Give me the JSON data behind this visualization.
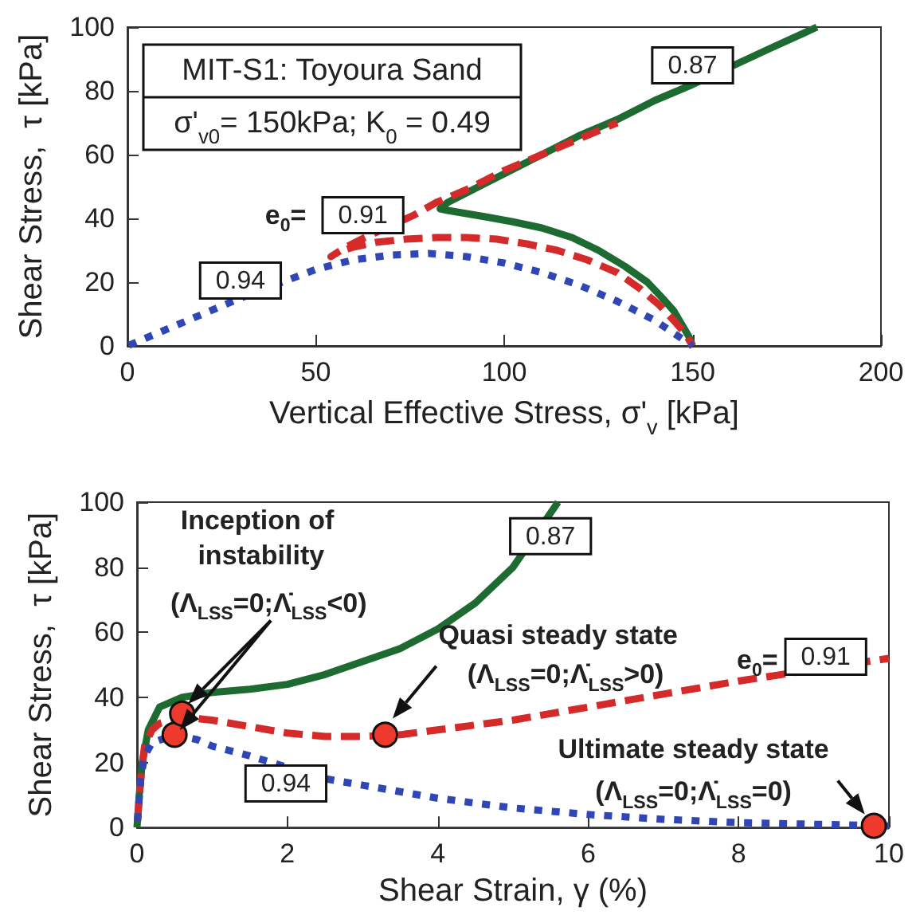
{
  "chart_data": [
    {
      "type": "line",
      "xlabel": "Vertical Effective Stress, σ'$_{v}$ [kPa]",
      "ylabel": "Shear Stress,  τ [kPa]",
      "xlim": [
        0,
        200
      ],
      "xticks": [
        0,
        50,
        100,
        150,
        200
      ],
      "ylim": [
        0,
        100
      ],
      "yticks": [
        0,
        20,
        40,
        60,
        80,
        100
      ],
      "grid": false,
      "series": [
        {
          "color": "#1e6b32",
          "line_style": "solid",
          "x": [
            150,
            149,
            147,
            145,
            142,
            138,
            132,
            125,
            118,
            110,
            102,
            95,
            90,
            85,
            83,
            85,
            90,
            95,
            100,
            110,
            120,
            130,
            140,
            150,
            170,
            183
          ],
          "values": [
            0,
            3,
            7,
            11,
            15,
            20,
            25,
            30,
            34,
            37,
            39,
            40.5,
            41.5,
            42.5,
            43,
            45,
            48,
            51,
            54,
            60,
            66,
            71,
            77,
            82,
            93,
            100
          ]
        },
        {
          "color": "#d42a2a",
          "line_style": "dashed",
          "x": [
            150,
            148,
            145,
            141,
            136,
            130,
            122,
            114,
            106,
            98,
            90,
            82,
            74,
            66,
            60,
            56,
            54,
            58,
            63,
            76,
            82,
            90,
            100,
            110,
            120,
            130
          ],
          "values": [
            0,
            4,
            8,
            13,
            18,
            23,
            27,
            30,
            32,
            33.5,
            34,
            34,
            33.5,
            32.5,
            31,
            29.5,
            28,
            31,
            34,
            41,
            45,
            49,
            55,
            60,
            65,
            70
          ]
        },
        {
          "color": "#2f46b4",
          "line_style": "dotted",
          "x": [
            0,
            5,
            10,
            20,
            30,
            50,
            60,
            70,
            80,
            90,
            100,
            110,
            120,
            130,
            140,
            145,
            150
          ],
          "values": [
            0,
            2.5,
            5,
            10,
            15,
            24,
            27,
            28.5,
            29,
            28,
            26,
            23,
            19,
            14,
            8,
            4,
            0
          ]
        }
      ],
      "annotations": [
        "MIT-S1: Toyoura Sand",
        "σ'$_{v0}$= 150kPa; K$_{0}$ = 0.49",
        "e$_{0}$=",
        "0.87",
        "0.91",
        "0.94"
      ]
    },
    {
      "type": "line",
      "xlabel": "Shear Strain, γ (%)",
      "ylabel": "Shear Stress,  τ [kPa]",
      "xlim": [
        0,
        10
      ],
      "xticks": [
        0,
        2,
        4,
        6,
        8,
        10
      ],
      "ylim": [
        0,
        100
      ],
      "yticks": [
        0,
        20,
        40,
        60,
        80,
        100
      ],
      "grid": false,
      "series": [
        {
          "color": "#1e6b32",
          "line_style": "solid",
          "x": [
            0,
            0.03,
            0.07,
            0.15,
            0.3,
            0.6,
            1,
            1.5,
            2,
            2.5,
            3,
            3.5,
            4,
            4.5,
            5,
            5.6
          ],
          "values": [
            0,
            10,
            20,
            30,
            37,
            40,
            41.5,
            42.5,
            44,
            47,
            51,
            55,
            61,
            69,
            80,
            100
          ]
        },
        {
          "color": "#d42a2a",
          "line_style": "dashed",
          "x": [
            0,
            0.05,
            0.1,
            0.2,
            0.3,
            0.6,
            1,
            1.5,
            2,
            2.5,
            3,
            3.5,
            4,
            5,
            6,
            7,
            8,
            10
          ],
          "values": [
            0,
            15,
            25,
            30,
            32,
            34,
            33,
            31,
            29,
            28,
            28,
            28.5,
            30,
            33,
            37,
            41,
            45,
            52
          ]
        },
        {
          "color": "#2f46b4",
          "line_style": "dotted",
          "x": [
            0,
            0.05,
            0.1,
            0.2,
            0.5,
            0.8,
            1,
            1.5,
            2.5,
            3,
            4,
            5,
            6,
            7,
            8,
            9,
            10
          ],
          "values": [
            0,
            15,
            22,
            26,
            28.5,
            27,
            25,
            22,
            15,
            13,
            9,
            6,
            4,
            2.5,
            1.5,
            1,
            0.5
          ]
        },
        {
          "type": "scatter",
          "marker": "circle",
          "color": "#ee3a2c",
          "x": [
            0.5,
            0.6,
            3.3,
            9.8
          ],
          "values": [
            28.5,
            35,
            28.5,
            0.5
          ]
        }
      ],
      "annotations": [
        "Inception of instability",
        {
          "text": "(Λ$_{LSS}$=0;Λ̇$_{LSS}$<0)",
          "x": 0.68,
          "y": 38
        },
        "Quasi steady state",
        {
          "text": "(Λ$_{LSS}$=0;Λ̇$_{LSS}$>0)",
          "x": 3.4,
          "y": 33.5
        },
        "Ultimate steady state",
        {
          "text": "(Λ$_{LSS}$=0;Λ̇$_{LSS}$=0)",
          "x": 9.68,
          "y": 4
        },
        "e$_{0}$=",
        "0.87",
        "0.91",
        "0.94"
      ]
    }
  ]
}
